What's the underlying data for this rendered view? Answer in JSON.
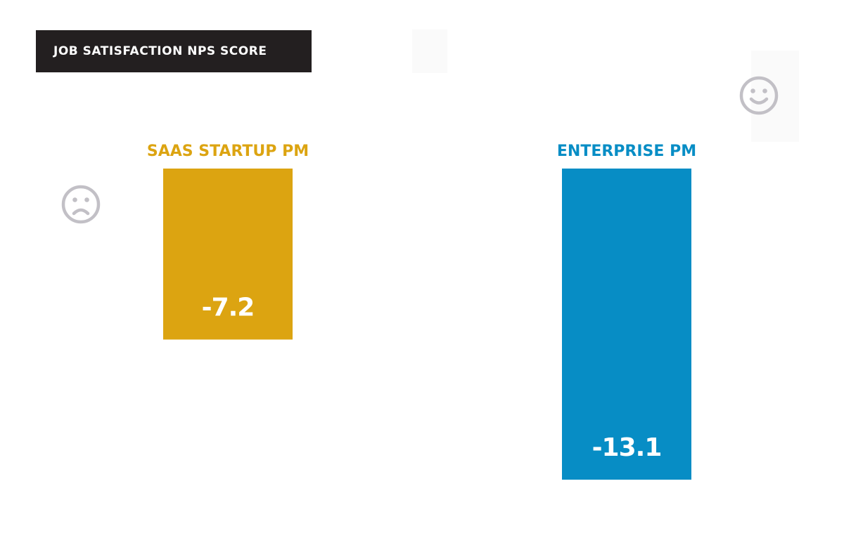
{
  "title": "JOB SATISFACTION NPS SCORE",
  "colors": {
    "title_bg": "#231f20",
    "saas": "#dca411",
    "enterprise": "#078dc5",
    "face": "#c2c0c6"
  },
  "icons": {
    "left": "frown-face-icon",
    "right": "smile-face-icon"
  },
  "chart_data": {
    "type": "bar",
    "title": "JOB SATISFACTION NPS SCORE",
    "categories": [
      "SAAS STARTUP PM",
      "ENTERPRISE PM"
    ],
    "values": [
      -7.2,
      -13.1
    ],
    "value_labels": [
      "-7.2",
      "-13.1"
    ],
    "colors": [
      "#dca411",
      "#078dc5"
    ],
    "ylim": [
      -13.1,
      0
    ],
    "xlabel": "",
    "ylabel": "",
    "grid": false,
    "legend": "none"
  }
}
